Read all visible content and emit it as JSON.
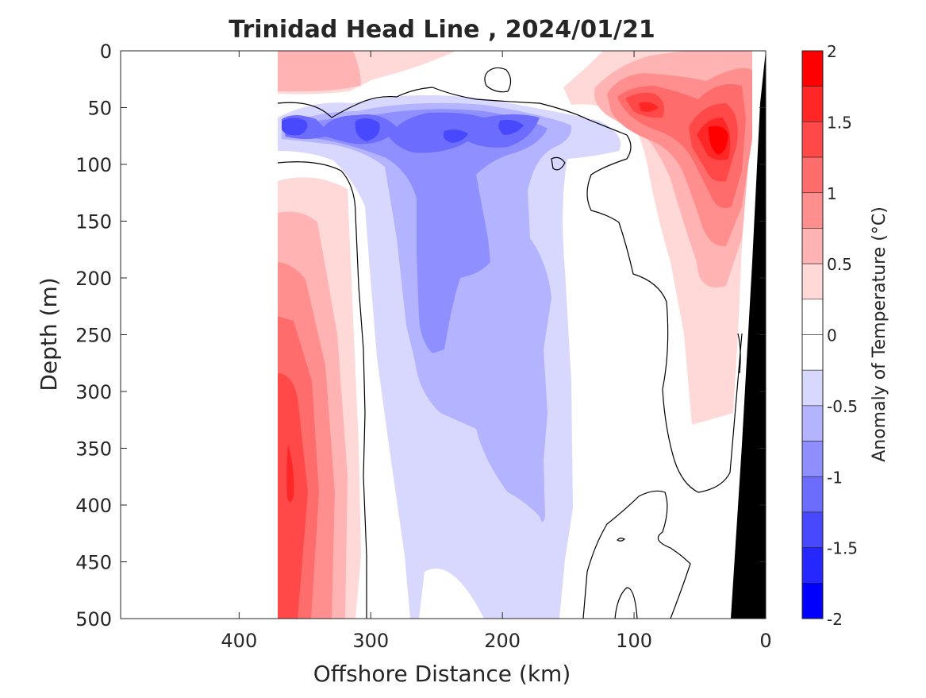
{
  "chart_data": {
    "type": "heatmap",
    "title": "Trinidad Head Line , 2024/01/21",
    "xlabel": "Offshore Distance (km)",
    "ylabel": "Depth (m)",
    "colorbar_label": "Anomaly of Temperature (°C)",
    "xlim": [
      490,
      0
    ],
    "ylim": [
      0,
      500
    ],
    "x_reversed": true,
    "y_reversed": true,
    "x_ticks": [
      400,
      300,
      200,
      100,
      0
    ],
    "y_ticks": [
      0,
      50,
      100,
      150,
      200,
      250,
      300,
      350,
      400,
      450,
      500
    ],
    "colorbar_range": [
      -2,
      2
    ],
    "colorbar_ticks": [
      2,
      1.5,
      1,
      0.5,
      0,
      -0.5,
      -1,
      -1.5,
      -2
    ],
    "levels": [
      {
        "from": 1.75,
        "to": 2.0,
        "color": "#ff0000"
      },
      {
        "from": 1.5,
        "to": 1.75,
        "color": "#ff2626"
      },
      {
        "from": 1.25,
        "to": 1.5,
        "color": "#ff4848"
      },
      {
        "from": 1.0,
        "to": 1.25,
        "color": "#ff6c6c"
      },
      {
        "from": 0.75,
        "to": 1.0,
        "color": "#ff8f8f"
      },
      {
        "from": 0.5,
        "to": 0.75,
        "color": "#ffb3b3"
      },
      {
        "from": 0.25,
        "to": 0.5,
        "color": "#ffd8d8"
      },
      {
        "from": 0.0,
        "to": 0.25,
        "color": "#ffffff"
      },
      {
        "from": -0.25,
        "to": 0.0,
        "color": "#ffffff"
      },
      {
        "from": -0.5,
        "to": -0.25,
        "color": "#d8d8ff"
      },
      {
        "from": -0.75,
        "to": -0.5,
        "color": "#b3b3ff"
      },
      {
        "from": -1.0,
        "to": -0.75,
        "color": "#8f8fff"
      },
      {
        "from": -1.25,
        "to": -1.0,
        "color": "#6c6cff"
      },
      {
        "from": -1.5,
        "to": -1.25,
        "color": "#4848ff"
      },
      {
        "from": -1.75,
        "to": -1.5,
        "color": "#2626ff"
      },
      {
        "from": -2.0,
        "to": -1.75,
        "color": "#0000ff"
      }
    ],
    "features": [
      {
        "name": "warm offshore core",
        "x_km": 360,
        "depth_m": 380,
        "anomaly": 1.6
      },
      {
        "name": "cold layer at thermocline",
        "x_km": 240,
        "depth_m": 70,
        "anomaly": -1.2
      },
      {
        "name": "cold tongue at depth",
        "x_km": 230,
        "depth_m": 220,
        "anomaly": -0.8
      },
      {
        "name": "warm nearshore core",
        "x_km": 35,
        "depth_m": 80,
        "anomaly": 1.8
      },
      {
        "name": "warm surface patch",
        "x_km": 95,
        "depth_m": 50,
        "anomaly": 1.6
      }
    ],
    "no_data_region": "x greater than 370 km",
    "bathymetry_color": "#000000"
  }
}
